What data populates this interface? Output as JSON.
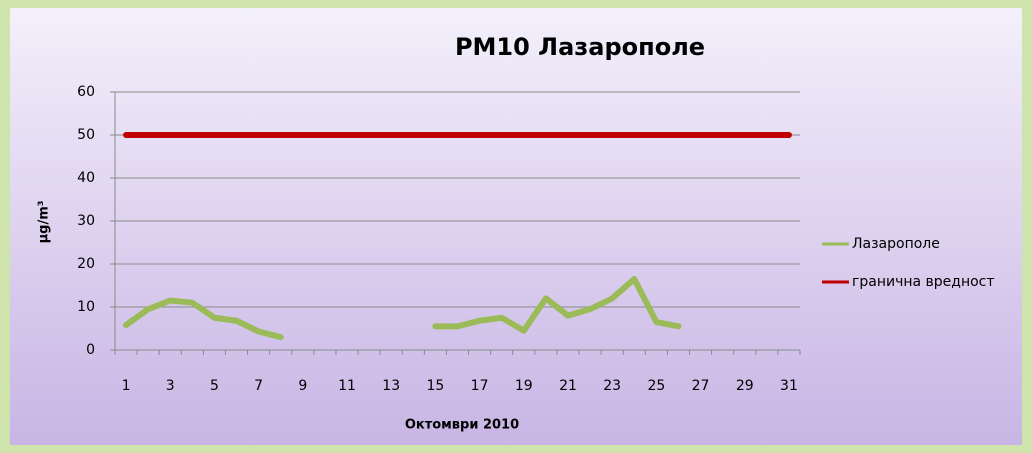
{
  "chart_data": {
    "type": "line",
    "title": "PM10 Лазарополе",
    "x_label": "Октомври 2010",
    "y_label": "µg/m³",
    "categories": [
      1,
      null,
      3,
      null,
      5,
      null,
      7,
      null,
      9,
      null,
      11,
      null,
      13,
      null,
      15,
      null,
      17,
      null,
      19,
      null,
      21,
      null,
      23,
      null,
      25,
      null,
      27,
      null,
      29,
      null,
      31
    ],
    "series": [
      {
        "name": "Лазарополе",
        "color": "#9bbb59",
        "values": [
          5.8,
          9.5,
          11.5,
          11,
          7.5,
          6.8,
          4.3,
          3,
          null,
          null,
          null,
          null,
          null,
          null,
          5.5,
          5.5,
          6.8,
          7.5,
          4.5,
          12,
          8,
          9.5,
          12,
          16.5,
          6.5,
          5.5,
          null,
          null,
          null,
          null,
          null
        ]
      },
      {
        "name": "гранична вредност",
        "color": "#c00000",
        "values": [
          50,
          50,
          50,
          50,
          50,
          50,
          50,
          50,
          50,
          50,
          50,
          50,
          50,
          50,
          50,
          50,
          50,
          50,
          50,
          50,
          50,
          50,
          50,
          50,
          50,
          50,
          50,
          50,
          50,
          50,
          50
        ]
      }
    ],
    "ylim": [
      0,
      60
    ],
    "yticks": [
      0,
      10,
      20,
      30,
      40,
      50,
      60
    ],
    "grid": true,
    "legend": "right"
  }
}
